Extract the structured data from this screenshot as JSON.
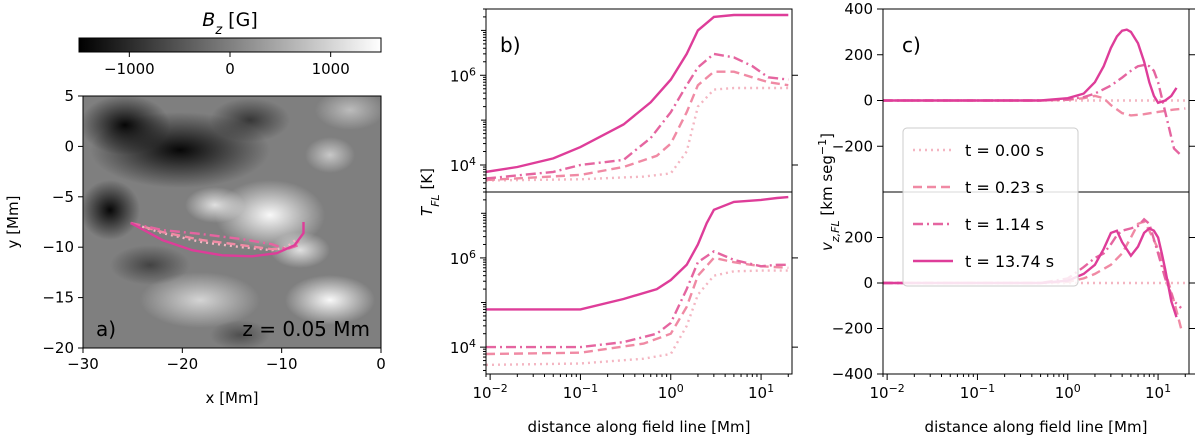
{
  "chart_data": [
    {
      "panel": "a)",
      "type": "heatmap",
      "colorbar": {
        "label_main": "B",
        "label_sub": "z",
        "label_unit": " [G]",
        "ticks": [
          "−1000",
          "0",
          "1000"
        ],
        "tick_values": [
          -1000,
          0,
          1000
        ],
        "range": [
          -1500,
          1500
        ],
        "colormap": "gray"
      },
      "xlabel": "x [Mm]",
      "ylabel": "y [Mm]",
      "xlim": [
        -30,
        0
      ],
      "ylim": [
        -20,
        5
      ],
      "xticks": [
        -30,
        -20,
        -10,
        0
      ],
      "xtick_labels": [
        "−30",
        "−20",
        "−10",
        "0"
      ],
      "yticks": [
        5,
        0,
        -5,
        -10,
        -15,
        -20
      ],
      "ytick_labels": [
        "5",
        "0",
        "−5",
        "−10",
        "−15",
        "−20"
      ],
      "annotation": "z = 0.05 Mm",
      "field_lines": [
        {
          "style": "dotted",
          "color": "#f4b6c2",
          "points": [
            [
              -25.2,
              -7.6
            ],
            [
              -22,
              -8.6
            ],
            [
              -18,
              -9.5
            ],
            [
              -14,
              -10.0
            ],
            [
              -11,
              -10.3
            ],
            [
              -9.5,
              -10.0
            ],
            [
              -8.5,
              -9.2
            ]
          ]
        },
        {
          "style": "dashed",
          "color": "#f08aa4",
          "points": [
            [
              -25.2,
              -7.6
            ],
            [
              -22,
              -8.5
            ],
            [
              -18,
              -9.3
            ],
            [
              -14,
              -9.8
            ],
            [
              -11,
              -10.2
            ],
            [
              -9.3,
              -10.1
            ],
            [
              -8.2,
              -9.4
            ]
          ]
        },
        {
          "style": "dashdot",
          "color": "#e565a0",
          "points": [
            [
              -25.2,
              -7.6
            ],
            [
              -22,
              -8.3
            ],
            [
              -18,
              -8.7
            ],
            [
              -14,
              -9.2
            ],
            [
              -11,
              -9.7
            ],
            [
              -9.5,
              -10.2
            ],
            [
              -8.3,
              -9.8
            ]
          ]
        },
        {
          "style": "solid",
          "color": "#de3d99",
          "points": [
            [
              -25.2,
              -7.6
            ],
            [
              -22,
              -9.3
            ],
            [
              -19,
              -10.3
            ],
            [
              -16,
              -10.8
            ],
            [
              -13,
              -10.9
            ],
            [
              -10.5,
              -10.6
            ],
            [
              -8.7,
              -9.8
            ],
            [
              -7.8,
              -8.6
            ],
            [
              -7.8,
              -7.5
            ]
          ]
        }
      ]
    },
    {
      "panel": "b)",
      "type": "line",
      "xlabel": "distance along field line [Mm]",
      "ylabel_main": "T",
      "ylabel_sub": "FL",
      "ylabel_unit": " [K]",
      "xscale": "log",
      "yscale": "log",
      "xlim": [
        0.009,
        22
      ],
      "xticks": [
        0.01,
        0.1,
        1,
        10
      ],
      "xtick_labels_base": "10",
      "xtick_labels_exp": [
        "−2",
        "−1",
        "0",
        "1"
      ],
      "ytick_labels_base": "10",
      "ytick_values": [
        10000,
        1000000
      ],
      "ytick_labels_exp": [
        "4",
        "6"
      ],
      "subplots": [
        {
          "ylim": [
            2500,
            30000000
          ],
          "series": [
            {
              "style": "dotted",
              "color": "#f4b6c2",
              "x": [
                0.009,
                0.1,
                0.5,
                1,
                1.5,
                2,
                3,
                5,
                10,
                20
              ],
              "y": [
                4500,
                4800,
                5500,
                6500,
                20000,
                200000,
                480000,
                520000,
                520000,
                520000
              ]
            },
            {
              "style": "dashed",
              "color": "#f08aa4",
              "x": [
                0.009,
                0.1,
                0.3,
                0.7,
                1,
                1.5,
                2,
                3,
                5,
                8,
                12,
                20
              ],
              "y": [
                4600,
                6000,
                9000,
                16000,
                30000,
                150000,
                600000,
                1200000,
                1200000,
                900000,
                700000,
                600000
              ]
            },
            {
              "style": "dashdot",
              "color": "#e565a0",
              "x": [
                0.009,
                0.05,
                0.1,
                0.3,
                0.6,
                1,
                1.5,
                2,
                3,
                5,
                8,
                12,
                20
              ],
              "y": [
                5000,
                7000,
                10000,
                13000,
                40000,
                150000,
                600000,
                1500000,
                3000000,
                2500000,
                1600000,
                900000,
                800000
              ]
            },
            {
              "style": "solid",
              "color": "#de3d99",
              "x": [
                0.009,
                0.02,
                0.05,
                0.1,
                0.3,
                0.6,
                1,
                1.5,
                2,
                3,
                5,
                10,
                15,
                20
              ],
              "y": [
                7000,
                9000,
                14000,
                25000,
                80000,
                250000,
                800000,
                3000000,
                10000000,
                20000000,
                22000000,
                22000000,
                22000000,
                22000000
              ]
            }
          ]
        },
        {
          "ylim": [
            2500,
            30000000
          ],
          "series": [
            {
              "style": "dotted",
              "color": "#f4b6c2",
              "x": [
                0.009,
                0.1,
                0.5,
                1,
                1.5,
                2,
                3,
                5,
                10,
                20
              ],
              "y": [
                4000,
                4300,
                5500,
                7000,
                30000,
                150000,
                400000,
                500000,
                520000,
                520000
              ]
            },
            {
              "style": "dashed",
              "color": "#f08aa4",
              "x": [
                0.009,
                0.1,
                0.5,
                1,
                1.5,
                2,
                3,
                5,
                10,
                20
              ],
              "y": [
                7000,
                7500,
                12000,
                20000,
                80000,
                400000,
                1000000,
                800000,
                650000,
                600000
              ]
            },
            {
              "style": "dashdot",
              "color": "#e565a0",
              "x": [
                0.009,
                0.1,
                0.3,
                0.7,
                1,
                1.5,
                2,
                3,
                5,
                10,
                15,
                20
              ],
              "y": [
                10000,
                10000,
                13000,
                20000,
                35000,
                200000,
                800000,
                1400000,
                900000,
                650000,
                700000,
                700000
              ]
            },
            {
              "style": "solid",
              "color": "#de3d99",
              "x": [
                0.009,
                0.1,
                0.3,
                0.7,
                1,
                1.5,
                2,
                2.5,
                3,
                5,
                10,
                15,
                20
              ],
              "y": [
                70000,
                70000,
                120000,
                200000,
                320000,
                700000,
                2000000,
                6000000,
                12000000,
                18000000,
                20000000,
                22000000,
                23000000
              ]
            }
          ]
        }
      ]
    },
    {
      "panel": "c)",
      "type": "line",
      "xlabel": "distance along field line [Mm]",
      "ylabel_main": "v",
      "ylabel_sub": "z,FL",
      "ylabel_unit": " [km seg",
      "ylabel_sup": "−1",
      "ylabel_end": "]",
      "xscale": "log",
      "xlim": [
        0.009,
        22
      ],
      "xticks": [
        0.01,
        0.1,
        1,
        10
      ],
      "xtick_labels_base": "10",
      "xtick_labels_exp": [
        "−2",
        "−1",
        "0",
        "1"
      ],
      "yticks": [
        400,
        200,
        0,
        -200,
        -400
      ],
      "ytick_labels": [
        "400",
        "200",
        "0",
        "−200",
        "−400"
      ],
      "legend_position": "center-left",
      "legend": [
        "t = 0.00 s",
        "t = 0.23 s",
        "t = 1.14 s",
        "t = 13.74 s"
      ],
      "subplots": [
        {
          "ylim": [
            -400,
            400
          ],
          "series": [
            {
              "style": "dotted",
              "color": "#f4b6c2",
              "x": [
                0.009,
                1,
                5,
                20
              ],
              "y": [
                0,
                0,
                0,
                0
              ]
            },
            {
              "style": "dashed",
              "color": "#f08aa4",
              "x": [
                0.009,
                0.5,
                1,
                1.5,
                2,
                2.5,
                3,
                4,
                5,
                7,
                10,
                15,
                20
              ],
              "y": [
                0,
                0,
                3,
                10,
                20,
                10,
                -20,
                -55,
                -65,
                -60,
                -50,
                -40,
                -35
              ]
            },
            {
              "style": "dashdot",
              "color": "#e565a0",
              "x": [
                0.009,
                0.5,
                1,
                1.5,
                2,
                3,
                4,
                5,
                6,
                7,
                8,
                9,
                10,
                12,
                15,
                18
              ],
              "y": [
                0,
                0,
                5,
                15,
                30,
                65,
                100,
                130,
                150,
                155,
                150,
                130,
                80,
                -50,
                -210,
                -240
              ]
            },
            {
              "style": "solid",
              "color": "#de3d99",
              "x": [
                0.009,
                0.5,
                1,
                1.5,
                2,
                2.5,
                3,
                3.5,
                4,
                4.5,
                5,
                6,
                7,
                8,
                9,
                10,
                11,
                12,
                14,
                16
              ],
              "y": [
                0,
                0,
                10,
                30,
                80,
                150,
                230,
                280,
                305,
                310,
                300,
                250,
                170,
                80,
                20,
                -10,
                -5,
                0,
                20,
                55
              ]
            }
          ]
        },
        {
          "ylim": [
            -400,
            400
          ],
          "series": [
            {
              "style": "dotted",
              "color": "#f4b6c2",
              "x": [
                0.009,
                1,
                5,
                20
              ],
              "y": [
                0,
                0,
                0,
                0
              ]
            },
            {
              "style": "dashed",
              "color": "#f08aa4",
              "x": [
                0.009,
                0.5,
                1,
                1.5,
                2,
                3,
                4,
                5,
                6,
                7,
                8,
                10,
                12,
                15,
                18
              ],
              "y": [
                0,
                0,
                5,
                20,
                40,
                80,
                130,
                200,
                260,
                270,
                230,
                150,
                50,
                -80,
                -200
              ]
            },
            {
              "style": "dashdot",
              "color": "#e565a0",
              "x": [
                0.009,
                0.5,
                1,
                1.5,
                2,
                2.5,
                3,
                3.5,
                4,
                5,
                6,
                7,
                8,
                10,
                12,
                15,
                18
              ],
              "y": [
                0,
                0,
                20,
                70,
                110,
                130,
                170,
                210,
                230,
                240,
                250,
                280,
                260,
                130,
                20,
                -80,
                -110
              ]
            },
            {
              "style": "solid",
              "color": "#de3d99",
              "x": [
                0.009,
                0.5,
                1,
                1.5,
                2,
                2.5,
                3,
                3.5,
                4,
                5,
                6,
                7,
                8,
                9,
                10,
                11,
                12,
                14,
                16
              ],
              "y": [
                0,
                0,
                10,
                40,
                80,
                150,
                220,
                230,
                180,
                120,
                160,
                220,
                240,
                230,
                200,
                130,
                60,
                -80,
                -150
              ]
            }
          ]
        }
      ]
    }
  ],
  "colors": {
    "t0": "#f4b6c2",
    "t1": "#f08aa4",
    "t2": "#e565a0",
    "t3": "#de3d99"
  }
}
